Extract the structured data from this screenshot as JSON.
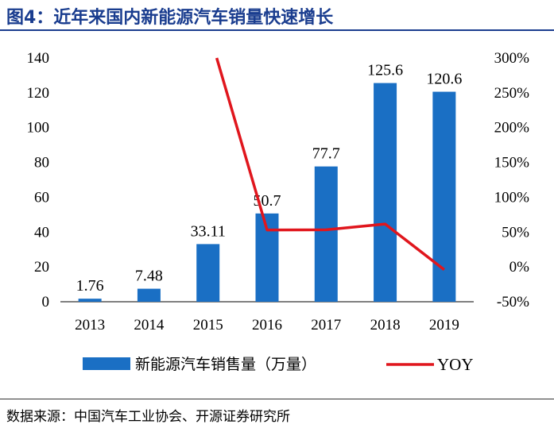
{
  "figure": {
    "title": "图4：近年来国内新能源汽车销量快速增长",
    "source": "数据来源：中国汽车工业协会、开源证券研究所"
  },
  "chart_data": {
    "type": "bar",
    "categories": [
      "2013",
      "2014",
      "2015",
      "2016",
      "2017",
      "2018",
      "2019"
    ],
    "series": [
      {
        "name": "新能源汽车销售量（万量）",
        "type": "bar",
        "axis": "left",
        "color": "#1a6fc4",
        "values": [
          1.76,
          7.48,
          33.11,
          50.7,
          77.7,
          125.6,
          120.6
        ],
        "labels": [
          "1.76",
          "7.48",
          "33.11",
          "50.7",
          "77.7",
          "125.6",
          "120.6"
        ]
      },
      {
        "name": "YOY",
        "type": "line",
        "axis": "right",
        "color": "#e0161d",
        "x": [
          "2015",
          "2016",
          "2017",
          "2018",
          "2019"
        ],
        "values": [
          342.6,
          53.1,
          53.3,
          61.6,
          -4.0
        ]
      }
    ],
    "y_left": {
      "min": 0,
      "max": 140,
      "step": 20,
      "ticks": [
        "0",
        "20",
        "40",
        "60",
        "80",
        "100",
        "120",
        "140"
      ]
    },
    "y_right": {
      "min": -50,
      "max": 300,
      "step": 50,
      "ticks": [
        "-50%",
        "0%",
        "50%",
        "100%",
        "150%",
        "200%",
        "250%",
        "300%"
      ]
    },
    "grid": false,
    "legend": "bottom"
  }
}
